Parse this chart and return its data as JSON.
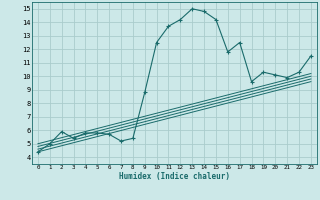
{
  "title": "",
  "xlabel": "Humidex (Indice chaleur)",
  "ylabel": "",
  "bg_color": "#cce8e8",
  "grid_color": "#aacccc",
  "line_color": "#1a6b6b",
  "xlim": [
    -0.5,
    23.5
  ],
  "ylim": [
    3.5,
    15.5
  ],
  "xticks": [
    0,
    1,
    2,
    3,
    4,
    5,
    6,
    7,
    8,
    9,
    10,
    11,
    12,
    13,
    14,
    15,
    16,
    17,
    18,
    19,
    20,
    21,
    22,
    23
  ],
  "yticks": [
    4,
    5,
    6,
    7,
    8,
    9,
    10,
    11,
    12,
    13,
    14,
    15
  ],
  "curve_x": [
    0,
    1,
    2,
    3,
    4,
    5,
    6,
    7,
    8,
    9,
    10,
    11,
    12,
    13,
    14,
    15,
    16,
    17,
    18,
    19,
    20,
    21,
    22,
    23
  ],
  "curve_y": [
    4.4,
    5.0,
    5.9,
    5.4,
    5.8,
    5.8,
    5.7,
    5.2,
    5.4,
    8.8,
    12.5,
    13.7,
    14.2,
    15.0,
    14.8,
    14.2,
    11.8,
    12.5,
    9.6,
    10.3,
    10.1,
    9.9,
    10.3,
    11.5
  ],
  "reg_lines": [
    {
      "x": [
        0,
        23
      ],
      "y": [
        4.4,
        9.6
      ]
    },
    {
      "x": [
        0,
        23
      ],
      "y": [
        4.6,
        9.8
      ]
    },
    {
      "x": [
        0,
        23
      ],
      "y": [
        4.8,
        10.0
      ]
    },
    {
      "x": [
        0,
        23
      ],
      "y": [
        5.0,
        10.2
      ]
    }
  ]
}
